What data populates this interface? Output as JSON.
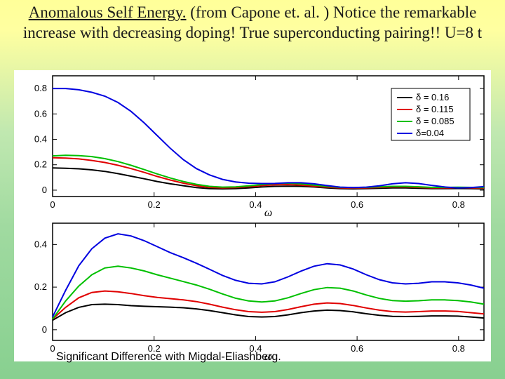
{
  "title_part1": "Anomalous Self Energy.",
  "title_part2": " (from Capone et. al. )  Notice the remarkable increase with decreasing doping! True superconducting pairing!!    U=8 t",
  "footer_text": "Significant Difference with  Migdal-Eliashberg.",
  "xlabel": "ω",
  "legend": {
    "items": [
      {
        "label": "δ = 0.16",
        "color": "#000000"
      },
      {
        "label": "δ = 0.115",
        "color": "#e00000"
      },
      {
        "label": "δ = 0.085",
        "color": "#00c000"
      },
      {
        "label": "δ=0.04",
        "color": "#0000e0"
      }
    ],
    "box_stroke": "#000000",
    "box_fill": "#ffffff"
  },
  "panel_top": {
    "xlim": [
      0,
      0.85
    ],
    "ylim": [
      -0.05,
      0.9
    ],
    "yticks": [
      0,
      0.2,
      0.4,
      0.6,
      0.8
    ],
    "xticks": [
      0,
      0.2,
      0.4,
      0.6,
      0.8
    ],
    "series": [
      {
        "color": "#000000",
        "y": [
          0.175,
          0.172,
          0.168,
          0.16,
          0.148,
          0.13,
          0.11,
          0.09,
          0.068,
          0.05,
          0.035,
          0.02,
          0.012,
          0.01,
          0.012,
          0.018,
          0.025,
          0.03,
          0.032,
          0.03,
          0.025,
          0.018,
          0.012,
          0.01,
          0.012,
          0.015,
          0.018,
          0.018,
          0.015,
          0.012,
          0.012,
          0.013,
          0.012,
          0.01
        ]
      },
      {
        "color": "#e00000",
        "y": [
          0.255,
          0.252,
          0.246,
          0.234,
          0.218,
          0.196,
          0.17,
          0.14,
          0.108,
          0.08,
          0.055,
          0.035,
          0.022,
          0.018,
          0.02,
          0.028,
          0.036,
          0.042,
          0.044,
          0.04,
          0.032,
          0.024,
          0.018,
          0.016,
          0.018,
          0.022,
          0.025,
          0.025,
          0.022,
          0.018,
          0.018,
          0.019,
          0.018,
          0.016
        ]
      },
      {
        "color": "#00c000",
        "y": [
          0.27,
          0.275,
          0.272,
          0.264,
          0.248,
          0.225,
          0.196,
          0.162,
          0.128,
          0.096,
          0.068,
          0.046,
          0.03,
          0.024,
          0.026,
          0.034,
          0.044,
          0.052,
          0.055,
          0.05,
          0.04,
          0.03,
          0.022,
          0.02,
          0.022,
          0.027,
          0.03,
          0.03,
          0.027,
          0.022,
          0.022,
          0.023,
          0.022,
          0.02
        ]
      },
      {
        "color": "#0000e0",
        "y": [
          0.8,
          0.8,
          0.79,
          0.77,
          0.74,
          0.69,
          0.62,
          0.53,
          0.43,
          0.33,
          0.24,
          0.17,
          0.12,
          0.085,
          0.065,
          0.055,
          0.052,
          0.053,
          0.058,
          0.058,
          0.05,
          0.036,
          0.024,
          0.02,
          0.024,
          0.034,
          0.05,
          0.058,
          0.052,
          0.038,
          0.025,
          0.018,
          0.02,
          0.028
        ]
      }
    ]
  },
  "panel_bottom": {
    "xlim": [
      0,
      0.85
    ],
    "ylim": [
      -0.05,
      0.5
    ],
    "yticks": [
      0,
      0.2,
      0.4
    ],
    "xticks": [
      0,
      0.2,
      0.4,
      0.6,
      0.8
    ],
    "series": [
      {
        "color": "#000000",
        "y": [
          0.045,
          0.08,
          0.105,
          0.118,
          0.12,
          0.118,
          0.113,
          0.11,
          0.108,
          0.106,
          0.103,
          0.098,
          0.09,
          0.08,
          0.07,
          0.062,
          0.06,
          0.062,
          0.07,
          0.08,
          0.088,
          0.092,
          0.09,
          0.084,
          0.075,
          0.068,
          0.063,
          0.062,
          0.063,
          0.065,
          0.065,
          0.064,
          0.06,
          0.055
        ]
      },
      {
        "color": "#e00000",
        "y": [
          0.05,
          0.105,
          0.15,
          0.175,
          0.182,
          0.178,
          0.17,
          0.16,
          0.152,
          0.146,
          0.14,
          0.132,
          0.12,
          0.106,
          0.094,
          0.085,
          0.082,
          0.085,
          0.095,
          0.108,
          0.12,
          0.126,
          0.123,
          0.114,
          0.102,
          0.092,
          0.085,
          0.083,
          0.085,
          0.088,
          0.088,
          0.086,
          0.08,
          0.074
        ]
      },
      {
        "color": "#00c000",
        "y": [
          0.05,
          0.135,
          0.205,
          0.258,
          0.29,
          0.298,
          0.29,
          0.276,
          0.258,
          0.242,
          0.226,
          0.21,
          0.19,
          0.168,
          0.148,
          0.135,
          0.13,
          0.135,
          0.15,
          0.17,
          0.188,
          0.198,
          0.195,
          0.182,
          0.163,
          0.147,
          0.137,
          0.134,
          0.136,
          0.14,
          0.14,
          0.137,
          0.13,
          0.12
        ]
      },
      {
        "color": "#0000e0",
        "y": [
          0.06,
          0.185,
          0.3,
          0.38,
          0.43,
          0.45,
          0.44,
          0.418,
          0.39,
          0.362,
          0.338,
          0.312,
          0.284,
          0.255,
          0.232,
          0.218,
          0.215,
          0.225,
          0.248,
          0.275,
          0.298,
          0.31,
          0.304,
          0.285,
          0.258,
          0.235,
          0.22,
          0.215,
          0.218,
          0.225,
          0.225,
          0.22,
          0.21,
          0.195
        ]
      }
    ]
  }
}
